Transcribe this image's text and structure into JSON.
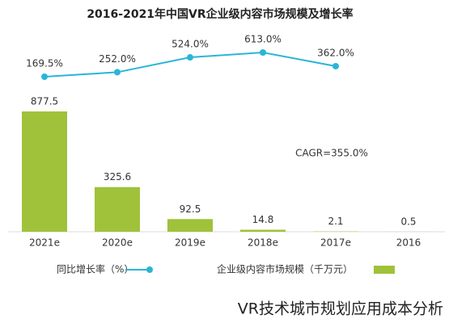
{
  "chart_data": {
    "type": "bar+line",
    "title": "2016-2021年中国VR企业级内容市场规模及增长率",
    "annotation": "CAGR=355.0%",
    "watermark": "VR技术城市规划应用成本分析",
    "categories": [
      "2021e",
      "2020e",
      "2019e",
      "2018e",
      "2017e",
      "2016"
    ],
    "series": [
      {
        "name": "企业级内容市场规模（千万元）",
        "type": "bar",
        "color": "#9fc23a",
        "values": [
          877.5,
          325.6,
          92.5,
          14.8,
          2.1,
          0.5
        ]
      },
      {
        "name": "同比增长率（%）",
        "type": "line",
        "color": "#2ab5d8",
        "values": [
          169.5,
          252.0,
          524.0,
          613.0,
          362.0,
          null
        ],
        "value_labels": [
          "169.5%",
          "252.0%",
          "524.0%",
          "613.0%",
          "362.0%",
          null
        ]
      }
    ],
    "legend": "bottom"
  }
}
